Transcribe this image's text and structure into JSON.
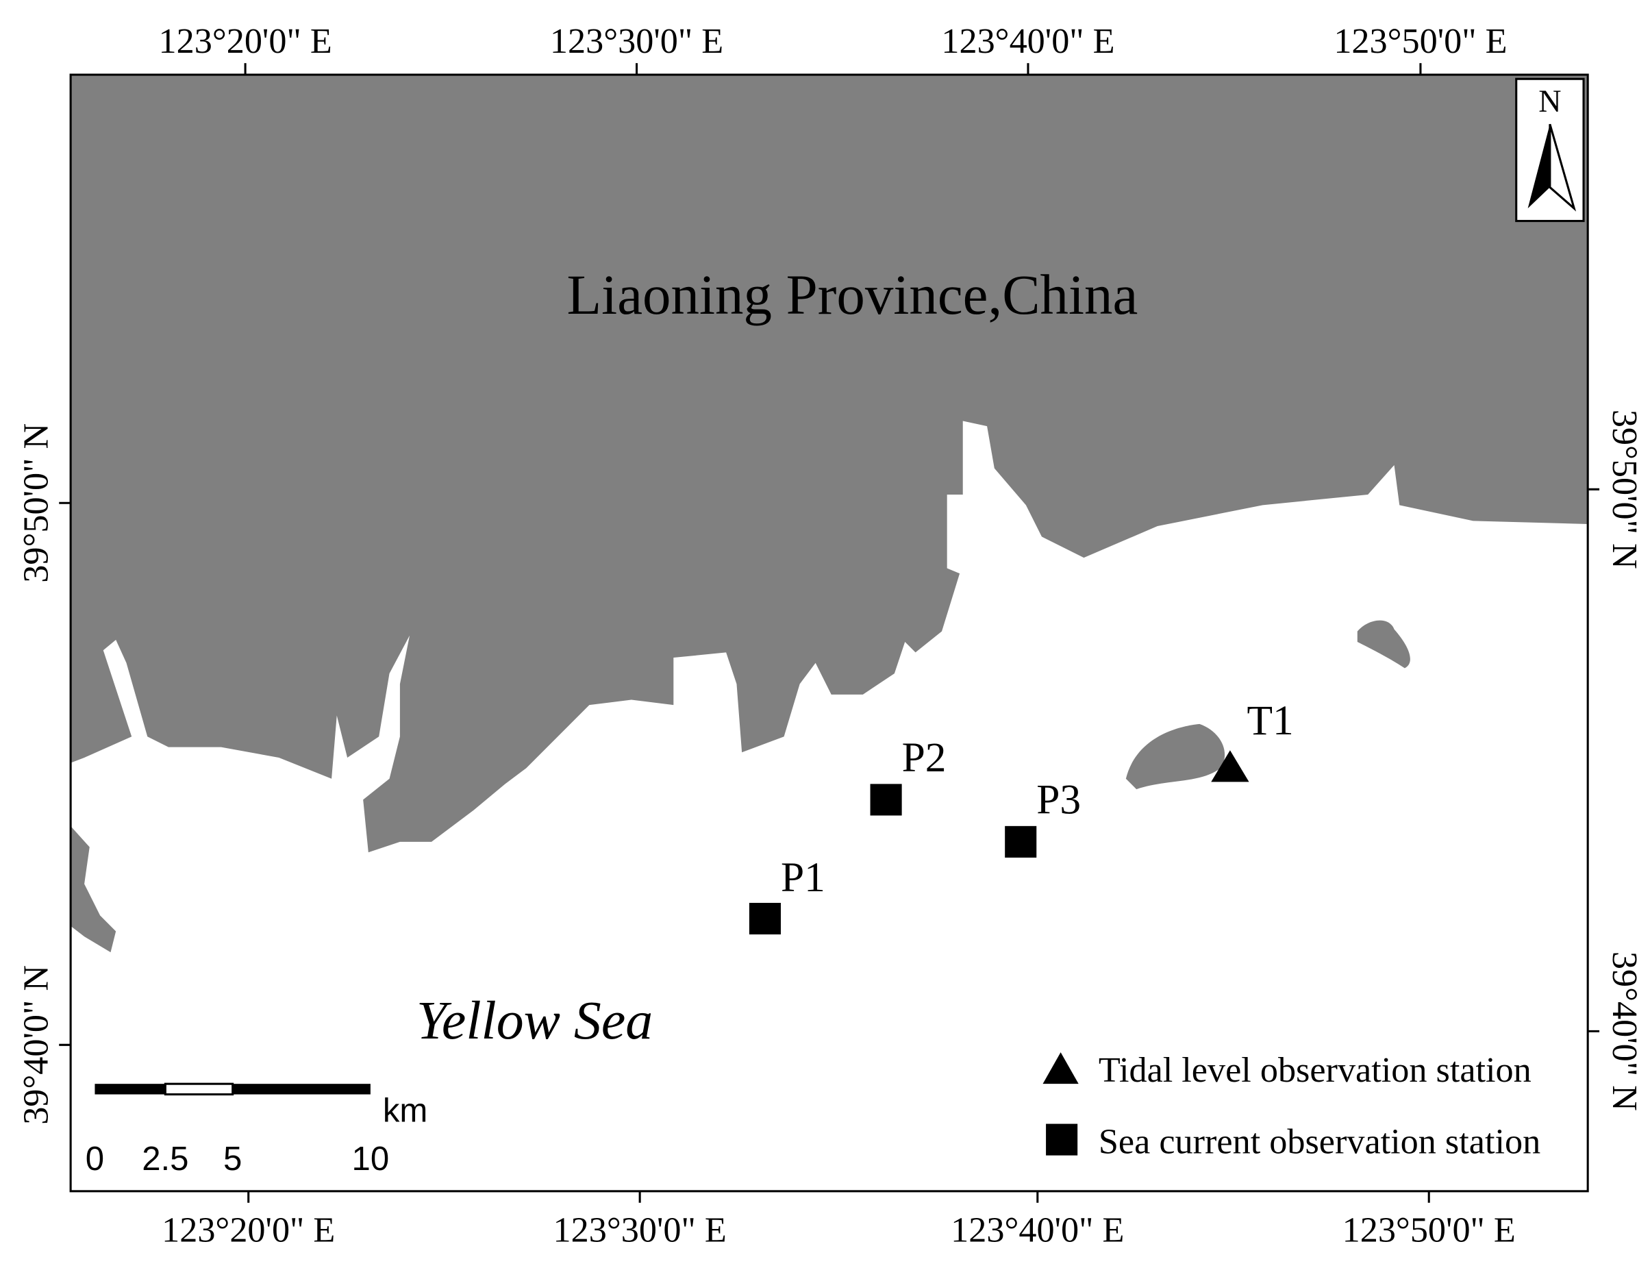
{
  "map": {
    "top_labels": [
      "123°20'0\" E",
      "123°30'0\" E",
      "123°40'0\" E",
      "123°50'0\" E"
    ],
    "bottom_labels": [
      "123°20'0\" E",
      "123°30'0\" E",
      "123°40'0\" E",
      "123°50'0\" E"
    ],
    "left_labels": [
      "39°50'0\" N",
      "39°40'0\" N"
    ],
    "right_labels": [
      "39°50'0\" N",
      "39°40'0\" N"
    ],
    "land_label": "Liaoning Province,China",
    "sea_label": "Yellow Sea",
    "north": "N",
    "stations": [
      {
        "label": "P1"
      },
      {
        "label": "P2"
      },
      {
        "label": "P3"
      },
      {
        "label": "T1"
      }
    ],
    "legend": [
      "Tidal level observation station",
      "Sea current observation station"
    ],
    "scale_bar": {
      "unit": "km",
      "labels": [
        "0",
        "2.5",
        "5",
        "10"
      ]
    }
  }
}
